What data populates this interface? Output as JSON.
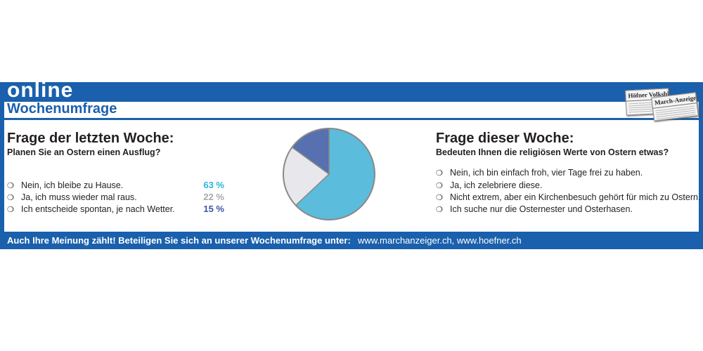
{
  "header": {
    "title_online": "online",
    "title_week": "Wochenumfrage",
    "newspapers": [
      "Höfner Volksblatt",
      "March-Anzeiger"
    ]
  },
  "last_week": {
    "heading": "Frage der letzten Woche:",
    "question": "Planen Sie an Ostern einen Ausflug?",
    "options": [
      {
        "label": "Nein, ich bleibe zu Hause.",
        "percent": "63 %",
        "color": "#2bb5d8"
      },
      {
        "label": "Ja, ich muss wieder mal raus.",
        "percent": "22 %",
        "color": "#a7a9ac"
      },
      {
        "label": "Ich entscheide spontan, je nach Wetter.",
        "percent": "15 %",
        "color": "#3b57a6"
      }
    ]
  },
  "this_week": {
    "heading": "Frage dieser Woche:",
    "question": "Bedeuten Ihnen die religiösen Werte von Ostern etwas?",
    "options": [
      "Nein, ich bin einfach froh, vier Tage frei zu haben.",
      "Ja, ich zelebriere diese.",
      "Nicht extrem, aber ein Kirchenbesuch gehört für mich zu Ostern.",
      "Ich suche nur die Osternester und Osterhasen."
    ]
  },
  "footer": {
    "cta": "Auch Ihre Meinung zählt! Beteiligen Sie sich an unserer Wochenumfrage unter:",
    "urls": "www.marchanzeiger.ch, www.hoefner.ch"
  },
  "bullet_symbol": "❍",
  "chart_data": {
    "type": "pie",
    "categories": [
      "Nein, ich bleibe zu Hause.",
      "Ja, ich muss wieder mal raus.",
      "Ich entscheide spontan, je nach Wetter."
    ],
    "values": [
      63,
      22,
      15
    ],
    "colors": [
      "#5bbcdc",
      "#e8e8ec",
      "#5670b0"
    ],
    "start_angle_deg": 0,
    "direction": "clockwise",
    "outline_color": "#8a8a8a"
  }
}
